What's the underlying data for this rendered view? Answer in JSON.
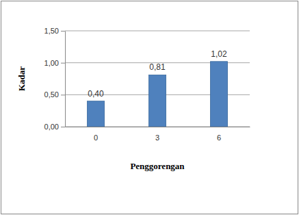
{
  "chart_data": {
    "type": "bar",
    "x_label": "Penggorengan",
    "y_label": "Kadar",
    "categories": [
      "0",
      "3",
      "6"
    ],
    "values": [
      0.4,
      0.81,
      1.02
    ],
    "value_labels": [
      "0,40",
      "0,81",
      "1,02"
    ],
    "data_labels": true,
    "color": "#4f81bd",
    "ylim": [
      0,
      1.5
    ],
    "yticks": [
      {
        "value": 0,
        "label": "0,00"
      },
      {
        "value": 0.5,
        "label": "0,50"
      },
      {
        "value": 1.0,
        "label": "1,00"
      },
      {
        "value": 1.5,
        "label": "1,50"
      }
    ],
    "grid": true
  }
}
